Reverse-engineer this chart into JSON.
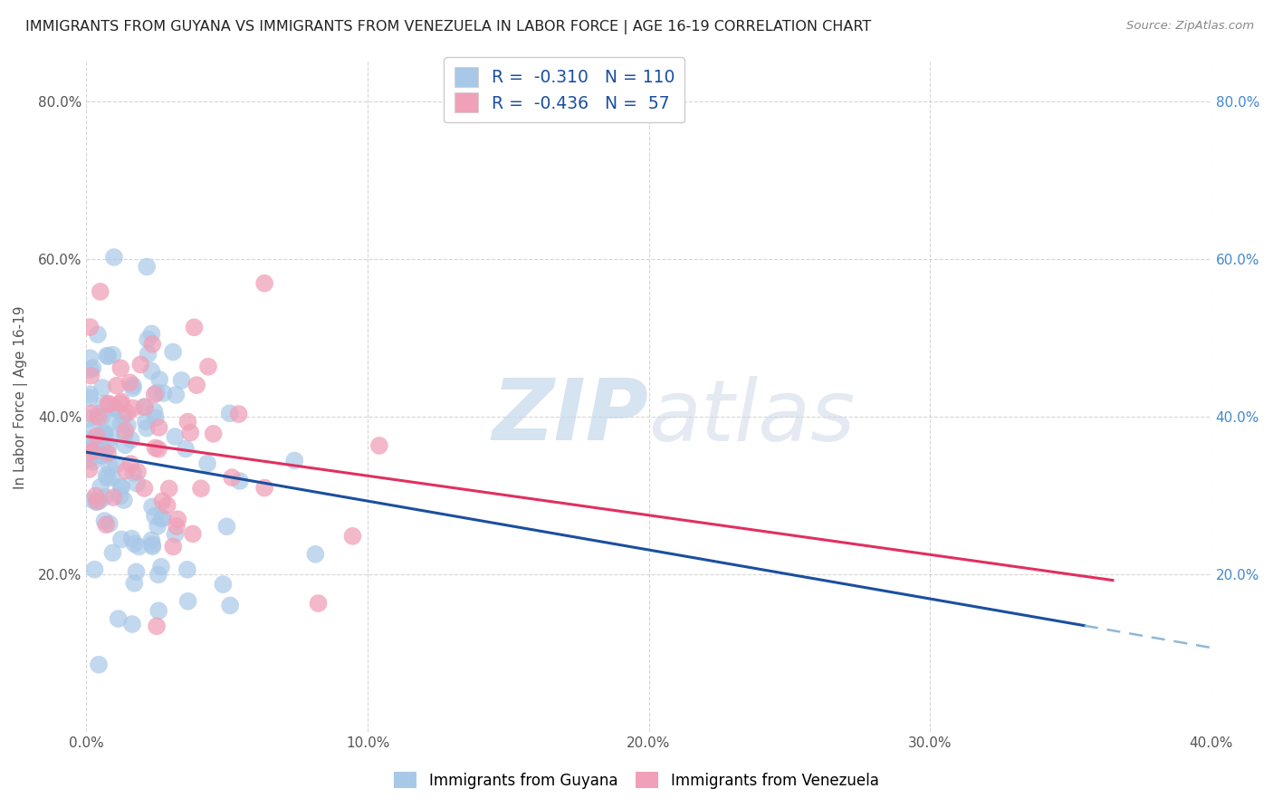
{
  "title": "IMMIGRANTS FROM GUYANA VS IMMIGRANTS FROM VENEZUELA IN LABOR FORCE | AGE 16-19 CORRELATION CHART",
  "source": "Source: ZipAtlas.com",
  "ylabel": "In Labor Force | Age 16-19",
  "xlim": [
    0.0,
    0.4
  ],
  "ylim": [
    0.0,
    0.85
  ],
  "xticks": [
    0.0,
    0.1,
    0.2,
    0.3,
    0.4
  ],
  "yticks": [
    0.0,
    0.2,
    0.4,
    0.6,
    0.8
  ],
  "xticklabels": [
    "0.0%",
    "10.0%",
    "20.0%",
    "30.0%",
    "40.0%"
  ],
  "yticklabels_left": [
    "",
    "20.0%",
    "40.0%",
    "60.0%",
    "80.0%"
  ],
  "yticklabels_right": [
    "",
    "20.0%",
    "40.0%",
    "60.0%",
    "80.0%"
  ],
  "guyana_color": "#a8c8e8",
  "venezuela_color": "#f0a0b8",
  "guyana_line_color": "#1a4fa0",
  "venezuela_line_color": "#e03060",
  "guyana_dash_color": "#90b8d8",
  "guyana_R": -0.31,
  "guyana_N": 110,
  "venezuela_R": -0.436,
  "venezuela_N": 57,
  "legend_label_guyana": "Immigrants from Guyana",
  "legend_label_venezuela": "Immigrants from Venezuela",
  "watermark_zip": "ZIP",
  "watermark_atlas": "atlas",
  "background_color": "#ffffff",
  "grid_color": "#bbbbbb",
  "guyana_line_intercept": 0.355,
  "guyana_line_slope": -0.62,
  "venezuela_line_intercept": 0.375,
  "venezuela_line_slope": -0.5,
  "guyana_line_x_end": 0.355,
  "venezuela_line_x_end": 0.365,
  "title_fontsize": 11.5,
  "tick_fontsize": 11,
  "right_tick_color": "#4488cc"
}
